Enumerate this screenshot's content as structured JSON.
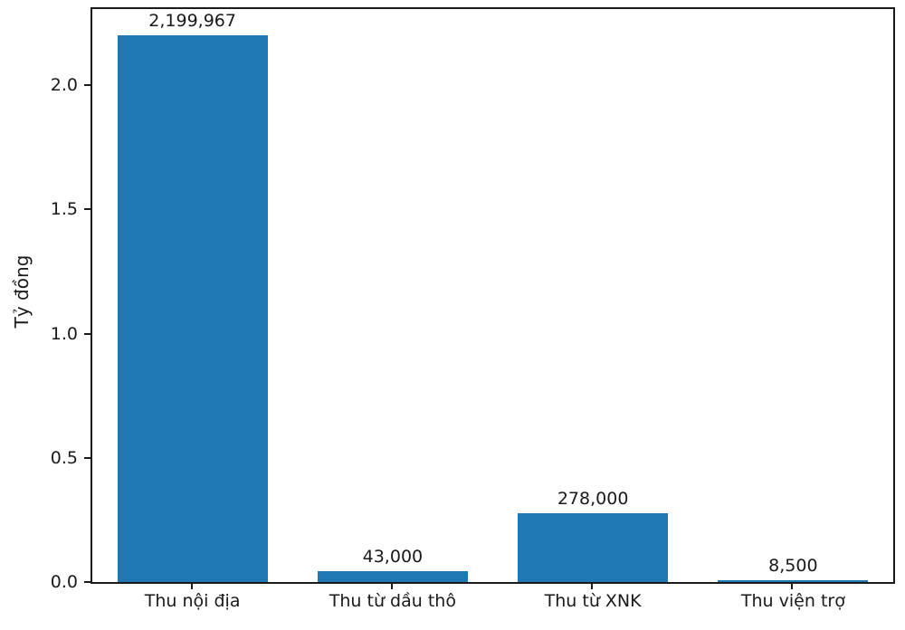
{
  "figure": {
    "background": "#ffffff"
  },
  "chart_data": {
    "type": "bar",
    "title": "",
    "xlabel": "",
    "ylabel": "Tỷ đồng",
    "categories": [
      "Thu nội địa",
      "Thu từ dầu thô",
      "Thu từ XNK",
      "Thu viện trợ"
    ],
    "values": [
      2199967,
      43000,
      278000,
      8500
    ],
    "value_labels": [
      "2,199,967",
      "43,000",
      "278,000",
      "8,500"
    ],
    "axis_unit_scale": 1000000,
    "yticks": [
      0.0,
      0.5,
      1.0,
      1.5,
      2.0
    ],
    "ytick_labels": [
      "0.0",
      "0.5",
      "1.0",
      "1.5",
      "2.0"
    ],
    "ylim": [
      0,
      2.3069
    ],
    "xlim": [
      -0.5,
      3.5
    ],
    "bar_width_units": 0.75,
    "bar_color": "#1f77b4",
    "text_color": "#1a1a1a",
    "grid": false,
    "legend_position": "none"
  }
}
